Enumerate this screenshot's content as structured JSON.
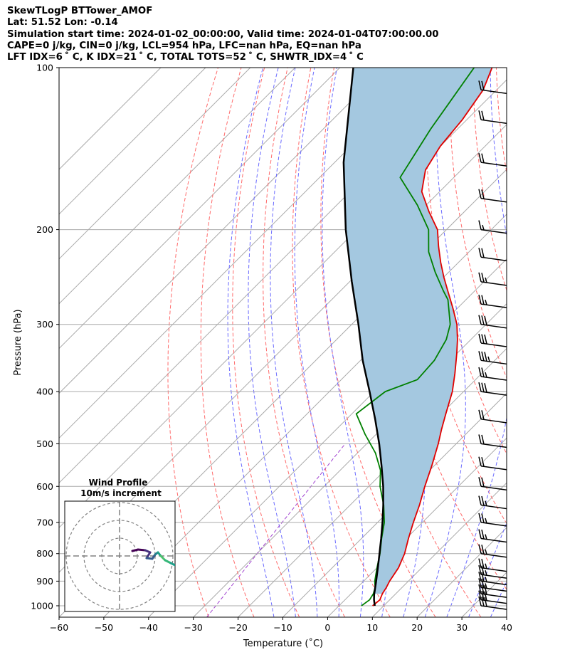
{
  "header": {
    "line1": "SkewTLogP BTTower_AMOF",
    "line2": "Lat: 51.52   Lon: -0.14",
    "line3": "Simulation start time: 2024-01-02_00:00:00, Valid time: 2024-01-04T07:00:00.00",
    "line4": "CAPE=0 j/kg, CIN=0 j/kg, LCL=954 hPa, LFC=nan hPa, EQ=nan hPa",
    "line5": "LFT IDX=6 ˚ C, K IDX=21 ˚ C, TOTAL TOTS=52 ˚ C, SHWTR_IDX=4 ˚ C"
  },
  "chart_data": {
    "type": "line",
    "subtype": "skew-T log-P diagram",
    "xlabel": "Temperature (˚C)",
    "ylabel": "Pressure (hPa)",
    "xlim": [
      -60,
      40
    ],
    "ylim": [
      1050,
      100
    ],
    "x_ticks": [
      "−60",
      "−50",
      "−40",
      "−30",
      "−20",
      "−10",
      "0",
      "10",
      "20",
      "30",
      "40"
    ],
    "y_ticks": [
      "100",
      "200",
      "300",
      "400",
      "500",
      "600",
      "700",
      "800",
      "900",
      "1000"
    ],
    "y_scale": "log",
    "skew_deg": 45,
    "grid": true,
    "series": [
      {
        "role": "temperature",
        "color": "#e00000",
        "p": [
          1000,
          975,
          950,
          925,
          900,
          850,
          800,
          750,
          700,
          650,
          600,
          550,
          500,
          470,
          440,
          400,
          370,
          340,
          320,
          300,
          280,
          260,
          245,
          230,
          215,
          200,
          185,
          170,
          155,
          140,
          125,
          110,
          100
        ],
        "t": [
          7.5,
          7.8,
          7.0,
          6.5,
          5.8,
          4.8,
          3.0,
          0.5,
          -2.0,
          -4.5,
          -7.5,
          -10.5,
          -14.0,
          -16.5,
          -19.0,
          -22.5,
          -26.0,
          -30.0,
          -33.0,
          -36.5,
          -41.0,
          -46.0,
          -50.0,
          -54.0,
          -58.0,
          -62.0,
          -68.0,
          -74.0,
          -78.0,
          -80.0,
          -81.0,
          -83.0,
          -86.0
        ]
      },
      {
        "role": "dewpoint",
        "color": "#008000",
        "p": [
          1000,
          975,
          950,
          925,
          900,
          850,
          800,
          750,
          700,
          650,
          600,
          560,
          520,
          480,
          440,
          400,
          380,
          350,
          320,
          300,
          270,
          260,
          240,
          220,
          200,
          180,
          160,
          130,
          100
        ],
        "t": [
          5.0,
          5.5,
          5.0,
          4.0,
          2.5,
          0.0,
          -2.5,
          -5.5,
          -8.5,
          -12.5,
          -17.5,
          -21.0,
          -26.0,
          -32.5,
          -39.0,
          -37.5,
          -33.0,
          -33.5,
          -35.5,
          -38.0,
          -44.0,
          -47.0,
          -53.0,
          -59.0,
          -64.0,
          -72.0,
          -82.0,
          -86.0,
          -90.0
        ]
      },
      {
        "role": "parcel",
        "color": "#000000",
        "p": [
          1000,
          975,
          954,
          900,
          850,
          800,
          750,
          700,
          650,
          600,
          550,
          500,
          450,
          400,
          350,
          300,
          250,
          200,
          150,
          100
        ],
        "t": [
          8.0,
          6.5,
          5.4,
          2.8,
          0.2,
          -2.6,
          -5.6,
          -8.9,
          -12.6,
          -16.8,
          -21.7,
          -27.2,
          -33.6,
          -41.0,
          -49.5,
          -58.5,
          -69.5,
          -82.5,
          -98.0,
          -117.0
        ]
      }
    ],
    "shaded_region": {
      "between": [
        "parcel",
        "temperature"
      ],
      "color": "#a4c8e0"
    },
    "background_lines": {
      "isotherms": "grey solid",
      "dry_adiabats": "red dashed",
      "moist_adiabats": "blue dashed",
      "mixing_ratio": "purple dashed"
    },
    "wind_barbs": {
      "color": "#000000",
      "p": [
        1000,
        975,
        950,
        925,
        900,
        875,
        850,
        800,
        750,
        700,
        650,
        600,
        550,
        500,
        450,
        400,
        375,
        350,
        325,
        300,
        275,
        250,
        225,
        200,
        175,
        150,
        125,
        110
      ],
      "speed_kt": [
        30,
        30,
        30,
        25,
        25,
        25,
        25,
        25,
        25,
        25,
        25,
        20,
        20,
        20,
        20,
        30,
        25,
        35,
        30,
        30,
        25,
        25,
        20,
        15,
        20,
        20,
        20,
        20
      ]
    },
    "inset": {
      "title": "Wind Profile",
      "subtitle": "10m/s increment",
      "type": "hodograph",
      "rings_ms": [
        10,
        20,
        30
      ]
    }
  }
}
